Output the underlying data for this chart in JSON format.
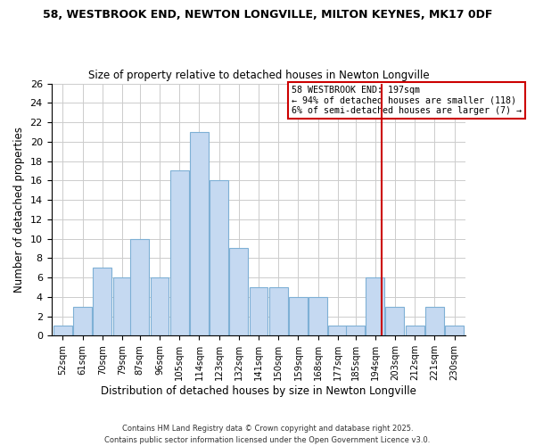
{
  "title_line1": "58, WESTBROOK END, NEWTON LONGVILLE, MILTON KEYNES, MK17 0DF",
  "title_line2": "Size of property relative to detached houses in Newton Longville",
  "xlabel": "Distribution of detached houses by size in Newton Longville",
  "ylabel": "Number of detached properties",
  "bin_labels": [
    "52sqm",
    "61sqm",
    "70sqm",
    "79sqm",
    "87sqm",
    "96sqm",
    "105sqm",
    "114sqm",
    "123sqm",
    "132sqm",
    "141sqm",
    "150sqm",
    "159sqm",
    "168sqm",
    "177sqm",
    "185sqm",
    "194sqm",
    "203sqm",
    "212sqm",
    "221sqm",
    "230sqm"
  ],
  "bin_centers": [
    52,
    61,
    70,
    79,
    87,
    96,
    105,
    114,
    123,
    132,
    141,
    150,
    159,
    168,
    177,
    185,
    194,
    203,
    212,
    221,
    230
  ],
  "bar_heights": [
    1,
    3,
    7,
    6,
    10,
    6,
    17,
    21,
    16,
    9,
    5,
    5,
    4,
    4,
    1,
    1,
    6,
    3,
    1,
    3,
    1
  ],
  "bar_color": "#c5d9f1",
  "bar_edgecolor": "#7eb0d5",
  "bar_width": 8.5,
  "property_size": 197,
  "vline_color": "#cc0000",
  "ylim": [
    0,
    26
  ],
  "yticks": [
    0,
    2,
    4,
    6,
    8,
    10,
    12,
    14,
    16,
    18,
    20,
    22,
    24,
    26
  ],
  "annotation_title": "58 WESTBROOK END: 197sqm",
  "annotation_line1": "← 94% of detached houses are smaller (118)",
  "annotation_line2": "6% of semi-detached houses are larger (7) →",
  "annotation_box_color": "#ffffff",
  "annotation_box_edgecolor": "#cc0000",
  "footnote1": "Contains HM Land Registry data © Crown copyright and database right 2025.",
  "footnote2": "Contains public sector information licensed under the Open Government Licence v3.0.",
  "background_color": "#ffffff",
  "grid_color": "#cccccc"
}
